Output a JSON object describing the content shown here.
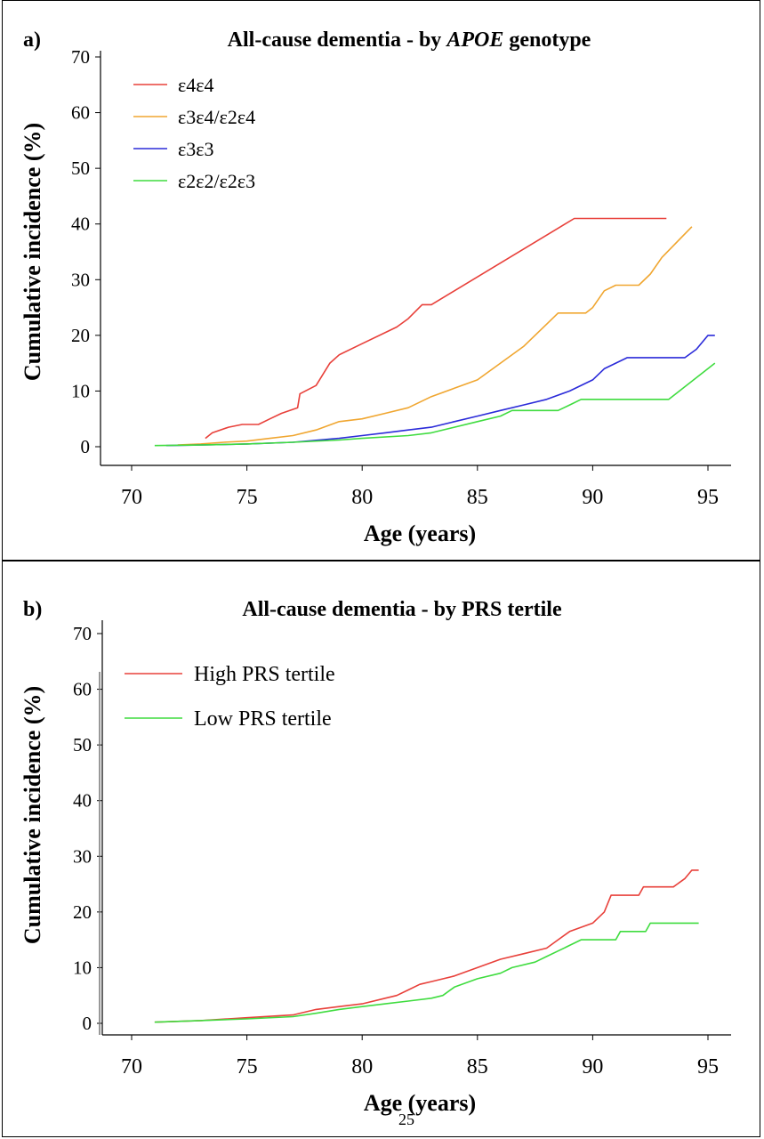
{
  "page_number": "25",
  "chart_data": [
    {
      "type": "line",
      "panel_label": "a)",
      "title_prefix": "All-cause dementia - by ",
      "title_italic": "APOE",
      "title_suffix": " genotype",
      "xlabel": "Age (years)",
      "ylabel": "Cumulative incidence (%)",
      "xlim": [
        70,
        95
      ],
      "ylim": [
        0,
        70
      ],
      "xticks": [
        70,
        75,
        80,
        85,
        90,
        95
      ],
      "yticks": [
        0,
        10,
        20,
        30,
        40,
        50,
        60,
        70
      ],
      "grid": false,
      "legend_position": "top-left",
      "series": [
        {
          "name": "ε4ε4",
          "color": "#e8403a",
          "points": [
            [
              73.2,
              1.5
            ],
            [
              73.5,
              2.5
            ],
            [
              74.2,
              3.5
            ],
            [
              74.8,
              4
            ],
            [
              75.5,
              4
            ],
            [
              76,
              5
            ],
            [
              76.5,
              6
            ],
            [
              77.2,
              7
            ],
            [
              77.3,
              9.5
            ],
            [
              78,
              11
            ],
            [
              78.3,
              13
            ],
            [
              78.6,
              15
            ],
            [
              79,
              16.5
            ],
            [
              80,
              18.5
            ],
            [
              81.5,
              21.5
            ],
            [
              82,
              23
            ],
            [
              82.6,
              25.5
            ],
            [
              83,
              25.5
            ],
            [
              89.2,
              41
            ],
            [
              93.2,
              41
            ]
          ]
        },
        {
          "name": "ε3ε4/ε2ε4",
          "color": "#f0a630",
          "points": [
            [
              72,
              0.3
            ],
            [
              73,
              0.5
            ],
            [
              74,
              0.8
            ],
            [
              75,
              1
            ],
            [
              76,
              1.5
            ],
            [
              77,
              2
            ],
            [
              78,
              3
            ],
            [
              79,
              4.5
            ],
            [
              80,
              5
            ],
            [
              81,
              6
            ],
            [
              82,
              7
            ],
            [
              83,
              9
            ],
            [
              84,
              10.5
            ],
            [
              85,
              12
            ],
            [
              86,
              15
            ],
            [
              87,
              18
            ],
            [
              88,
              22
            ],
            [
              88.5,
              24
            ],
            [
              89.7,
              24
            ],
            [
              90,
              25
            ],
            [
              90.5,
              28
            ],
            [
              91,
              29
            ],
            [
              92,
              29
            ],
            [
              92.5,
              31
            ],
            [
              93,
              34
            ],
            [
              94.3,
              39.5
            ]
          ]
        },
        {
          "name": "ε3ε3",
          "color": "#2b2bd9",
          "points": [
            [
              71.5,
              0.2
            ],
            [
              73,
              0.3
            ],
            [
              75,
              0.5
            ],
            [
              77,
              0.8
            ],
            [
              79,
              1.5
            ],
            [
              80,
              2
            ],
            [
              81,
              2.5
            ],
            [
              82,
              3
            ],
            [
              83,
              3.5
            ],
            [
              84,
              4.5
            ],
            [
              85,
              5.5
            ],
            [
              86,
              6.5
            ],
            [
              87,
              7.5
            ],
            [
              88,
              8.5
            ],
            [
              89,
              10
            ],
            [
              90,
              12
            ],
            [
              90.5,
              14
            ],
            [
              91.5,
              16
            ],
            [
              94,
              16
            ],
            [
              94.5,
              17.5
            ],
            [
              95,
              20
            ],
            [
              95.3,
              20
            ]
          ]
        },
        {
          "name": "ε2ε2/ε2ε3",
          "color": "#3fdc3f",
          "points": [
            [
              71,
              0.2
            ],
            [
              73,
              0.3
            ],
            [
              75,
              0.5
            ],
            [
              77,
              0.8
            ],
            [
              79,
              1.2
            ],
            [
              80,
              1.5
            ],
            [
              82,
              2
            ],
            [
              83,
              2.5
            ],
            [
              84,
              3.5
            ],
            [
              85,
              4.5
            ],
            [
              86,
              5.5
            ],
            [
              86.5,
              6.5
            ],
            [
              88.5,
              6.5
            ],
            [
              89,
              7.5
            ],
            [
              89.5,
              8.5
            ],
            [
              93.3,
              8.5
            ],
            [
              95.3,
              15
            ]
          ]
        }
      ]
    },
    {
      "type": "line",
      "panel_label": "b)",
      "title_prefix": "All-cause dementia - by PRS tertile",
      "title_italic": "",
      "title_suffix": "",
      "xlabel": "Age (years)",
      "ylabel": "Cumulative incidence (%)",
      "xlim": [
        70,
        95
      ],
      "ylim": [
        0,
        70
      ],
      "xticks": [
        70,
        75,
        80,
        85,
        90,
        95
      ],
      "yticks": [
        0,
        10,
        20,
        30,
        40,
        50,
        60,
        70
      ],
      "grid": false,
      "legend_position": "top-left",
      "series": [
        {
          "name": "High PRS tertile",
          "color": "#e8403a",
          "points": [
            [
              71,
              0.2
            ],
            [
              73,
              0.5
            ],
            [
              75,
              1
            ],
            [
              77,
              1.5
            ],
            [
              78,
              2.5
            ],
            [
              79,
              3
            ],
            [
              80,
              3.5
            ],
            [
              81,
              4.5
            ],
            [
              81.5,
              5
            ],
            [
              82,
              6
            ],
            [
              82.5,
              7
            ],
            [
              83,
              7.5
            ],
            [
              84,
              8.5
            ],
            [
              85,
              10
            ],
            [
              86,
              11.5
            ],
            [
              87,
              12.5
            ],
            [
              88,
              13.5
            ],
            [
              88.5,
              15
            ],
            [
              89,
              16.5
            ],
            [
              90,
              18
            ],
            [
              90.5,
              20
            ],
            [
              90.8,
              23
            ],
            [
              92,
              23
            ],
            [
              92.2,
              24.5
            ],
            [
              93.5,
              24.5
            ],
            [
              94,
              26
            ],
            [
              94.3,
              27.5
            ],
            [
              94.6,
              27.5
            ]
          ]
        },
        {
          "name": "Low PRS tertile",
          "color": "#3fdc3f",
          "points": [
            [
              71,
              0.2
            ],
            [
              73,
              0.5
            ],
            [
              75,
              0.8
            ],
            [
              77,
              1.2
            ],
            [
              78,
              1.8
            ],
            [
              79,
              2.5
            ],
            [
              80,
              3
            ],
            [
              81,
              3.5
            ],
            [
              82,
              4
            ],
            [
              83,
              4.5
            ],
            [
              83.5,
              5
            ],
            [
              84,
              6.5
            ],
            [
              85,
              8
            ],
            [
              86,
              9
            ],
            [
              86.5,
              10
            ],
            [
              87.5,
              11
            ],
            [
              88,
              12
            ],
            [
              88.5,
              13
            ],
            [
              89,
              14
            ],
            [
              89.5,
              15
            ],
            [
              91,
              15
            ],
            [
              91.2,
              16.5
            ],
            [
              92.3,
              16.5
            ],
            [
              92.5,
              18
            ],
            [
              94.6,
              18
            ]
          ]
        }
      ]
    }
  ]
}
